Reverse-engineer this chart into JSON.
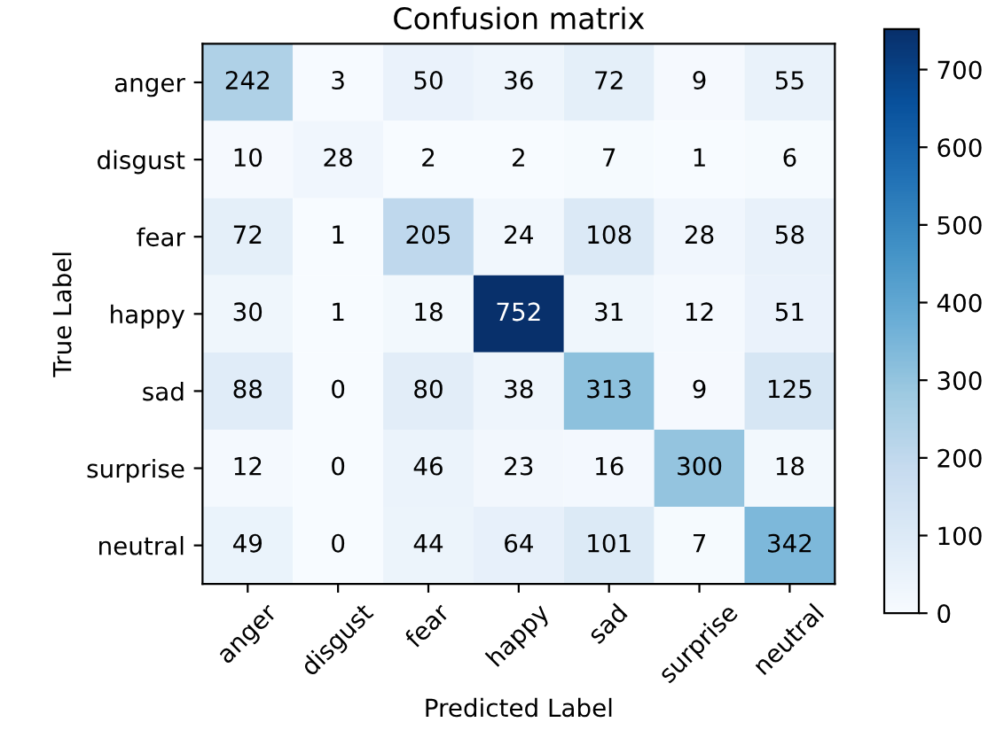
{
  "chart_data": {
    "type": "heatmap",
    "title": "Confusion matrix",
    "xlabel": "Predicted Label",
    "ylabel": "True Label",
    "categories": [
      "anger",
      "disgust",
      "fear",
      "happy",
      "sad",
      "surprise",
      "neutral"
    ],
    "y_categories": [
      "anger",
      "disgust",
      "fear",
      "happy",
      "sad",
      "surprise",
      "neutral"
    ],
    "cells": [
      [
        242,
        3,
        50,
        36,
        72,
        9,
        55
      ],
      [
        10,
        28,
        2,
        2,
        7,
        1,
        6
      ],
      [
        72,
        1,
        205,
        24,
        108,
        28,
        58
      ],
      [
        30,
        1,
        18,
        752,
        31,
        12,
        51
      ],
      [
        88,
        0,
        80,
        38,
        313,
        9,
        125
      ],
      [
        12,
        0,
        46,
        23,
        16,
        300,
        18
      ],
      [
        49,
        0,
        44,
        64,
        101,
        7,
        342
      ]
    ],
    "clim": [
      0,
      752
    ],
    "cticks": [
      0,
      100,
      200,
      300,
      400,
      500,
      600,
      700
    ],
    "data_labels": true,
    "grid": false
  }
}
